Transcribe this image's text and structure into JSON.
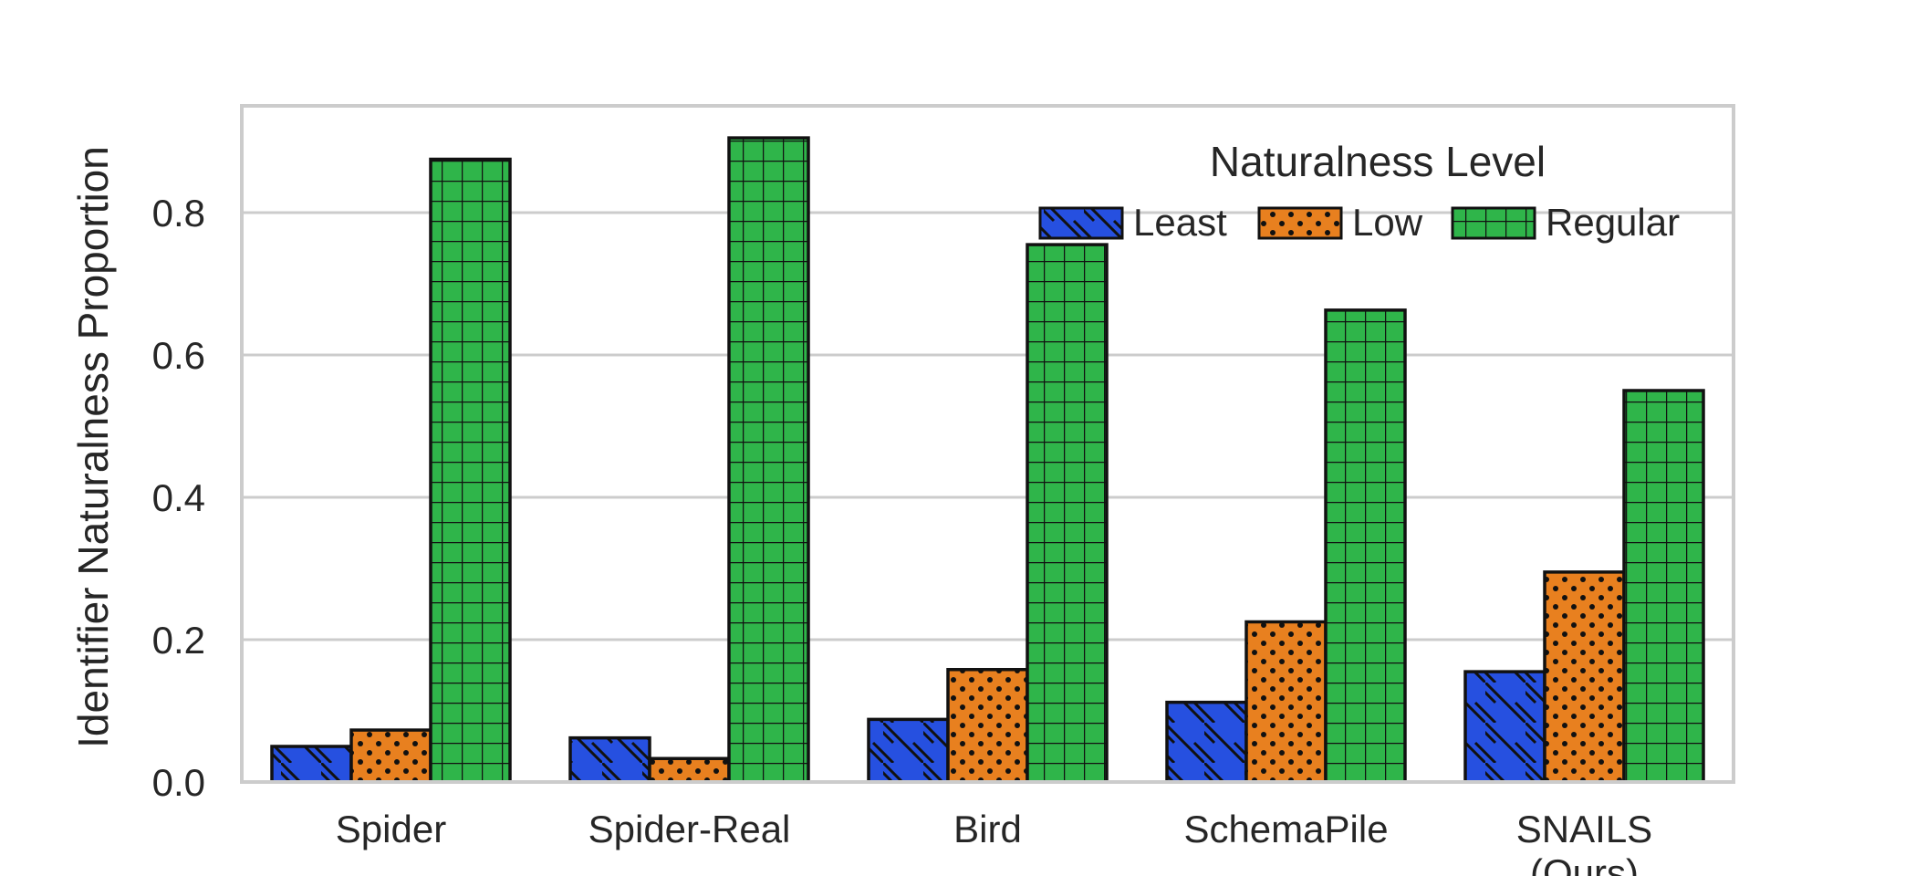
{
  "chart_data": {
    "type": "bar",
    "categories": [
      "Spider",
      "Spider-Real",
      "Bird",
      "SchemaPile",
      "SNAILS\n(Ours)"
    ],
    "series": [
      {
        "name": "Least",
        "values": [
          0.05,
          0.062,
          0.088,
          0.112,
          0.155
        ]
      },
      {
        "name": "Low",
        "values": [
          0.073,
          0.033,
          0.158,
          0.225,
          0.295
        ]
      },
      {
        "name": "Regular",
        "values": [
          0.875,
          0.905,
          0.755,
          0.663,
          0.55
        ]
      }
    ],
    "title": "",
    "xlabel": "",
    "ylabel": "Identifier Naturalness Proportion",
    "ylim": [
      0,
      0.95
    ],
    "yticks": [
      "0.0",
      "0.2",
      "0.4",
      "0.6",
      "0.8"
    ],
    "ytick_values": [
      0,
      0.2,
      0.4,
      0.6,
      0.8
    ],
    "grid": "horizontal",
    "legend": {
      "title": "Naturalness Level",
      "placement": "top-right"
    },
    "colors": [
      "#2650e0",
      "#e8801f",
      "#2fb54a"
    ],
    "hatches": [
      "diagonal",
      "dots",
      "grid"
    ]
  }
}
